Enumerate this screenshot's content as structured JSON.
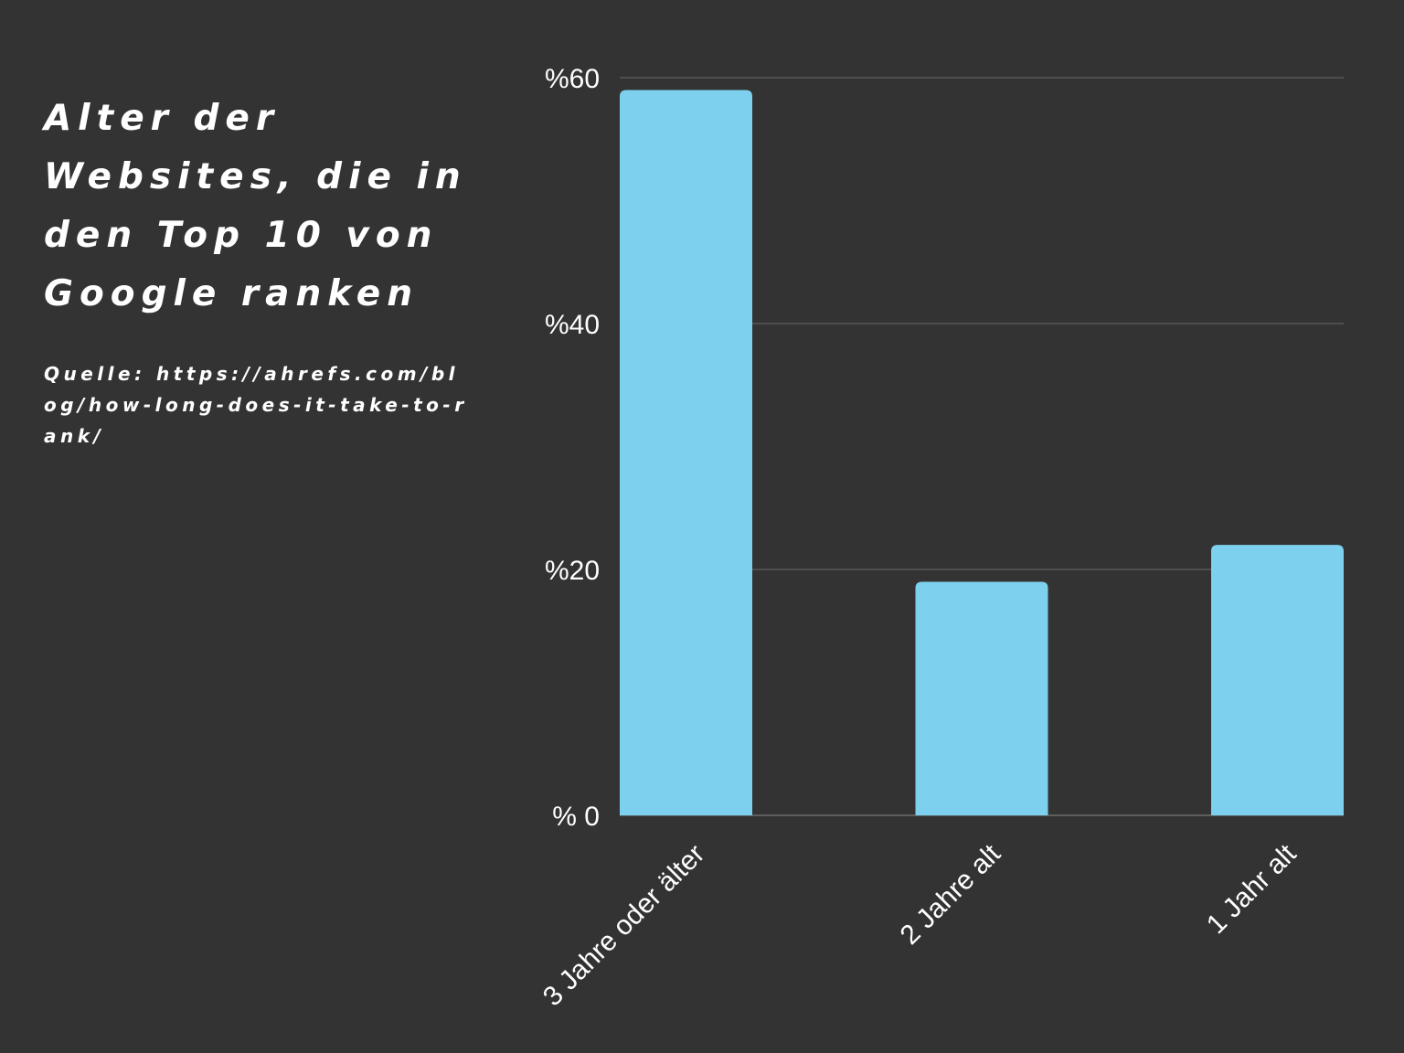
{
  "title": "Alter der Websites, die in den Top 10 von Google ranken",
  "source": "Quelle: https://ahrefs.com/blog/how-long-does-it-take-to-rank/",
  "colors": {
    "background": "#333333",
    "bar": "#7dd0ee",
    "grid": "#6a6a6a",
    "text": "#ffffff"
  },
  "chart_data": {
    "type": "bar",
    "categories": [
      "3 Jahre oder älter",
      "2 Jahre alt",
      "1 Jahr alt"
    ],
    "values": [
      59,
      19,
      22
    ],
    "y_ticks": [
      0,
      20,
      40,
      60
    ],
    "y_tick_labels": [
      "% 0",
      "%20",
      "%40",
      "%60"
    ],
    "ylim": [
      0,
      60
    ],
    "grid": true,
    "legend": "none"
  }
}
